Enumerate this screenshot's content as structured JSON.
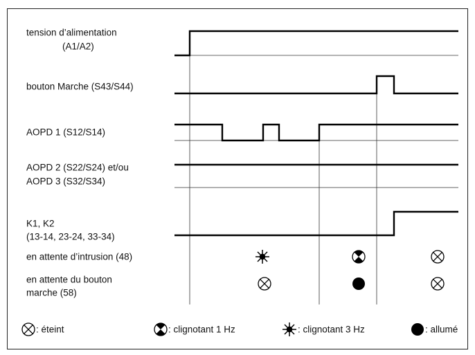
{
  "signals": [
    {
      "label": [
        "tension d’alimentation",
        "(A1/A2)"
      ]
    },
    {
      "label": [
        "bouton Marche (S43/S44)"
      ]
    },
    {
      "label": [
        "AOPD 1 (S12/S14)"
      ]
    },
    {
      "label": [
        "AOPD 2 (S22/S24) et/ou",
        "AOPD 3 (S32/S34)"
      ]
    },
    {
      "label": [
        "K1, K2",
        "(13-14, 23-24, 33-34)"
      ]
    }
  ],
  "states": [
    {
      "label": [
        "en attente d’intrusion (48)"
      ]
    },
    {
      "label": [
        "en attente du bouton",
        "marche (58)"
      ]
    }
  ],
  "legend": [
    ": éteint",
    ": clignotant 1 Hz",
    ": clignotant 3 Hz",
    ": allumé"
  ]
}
